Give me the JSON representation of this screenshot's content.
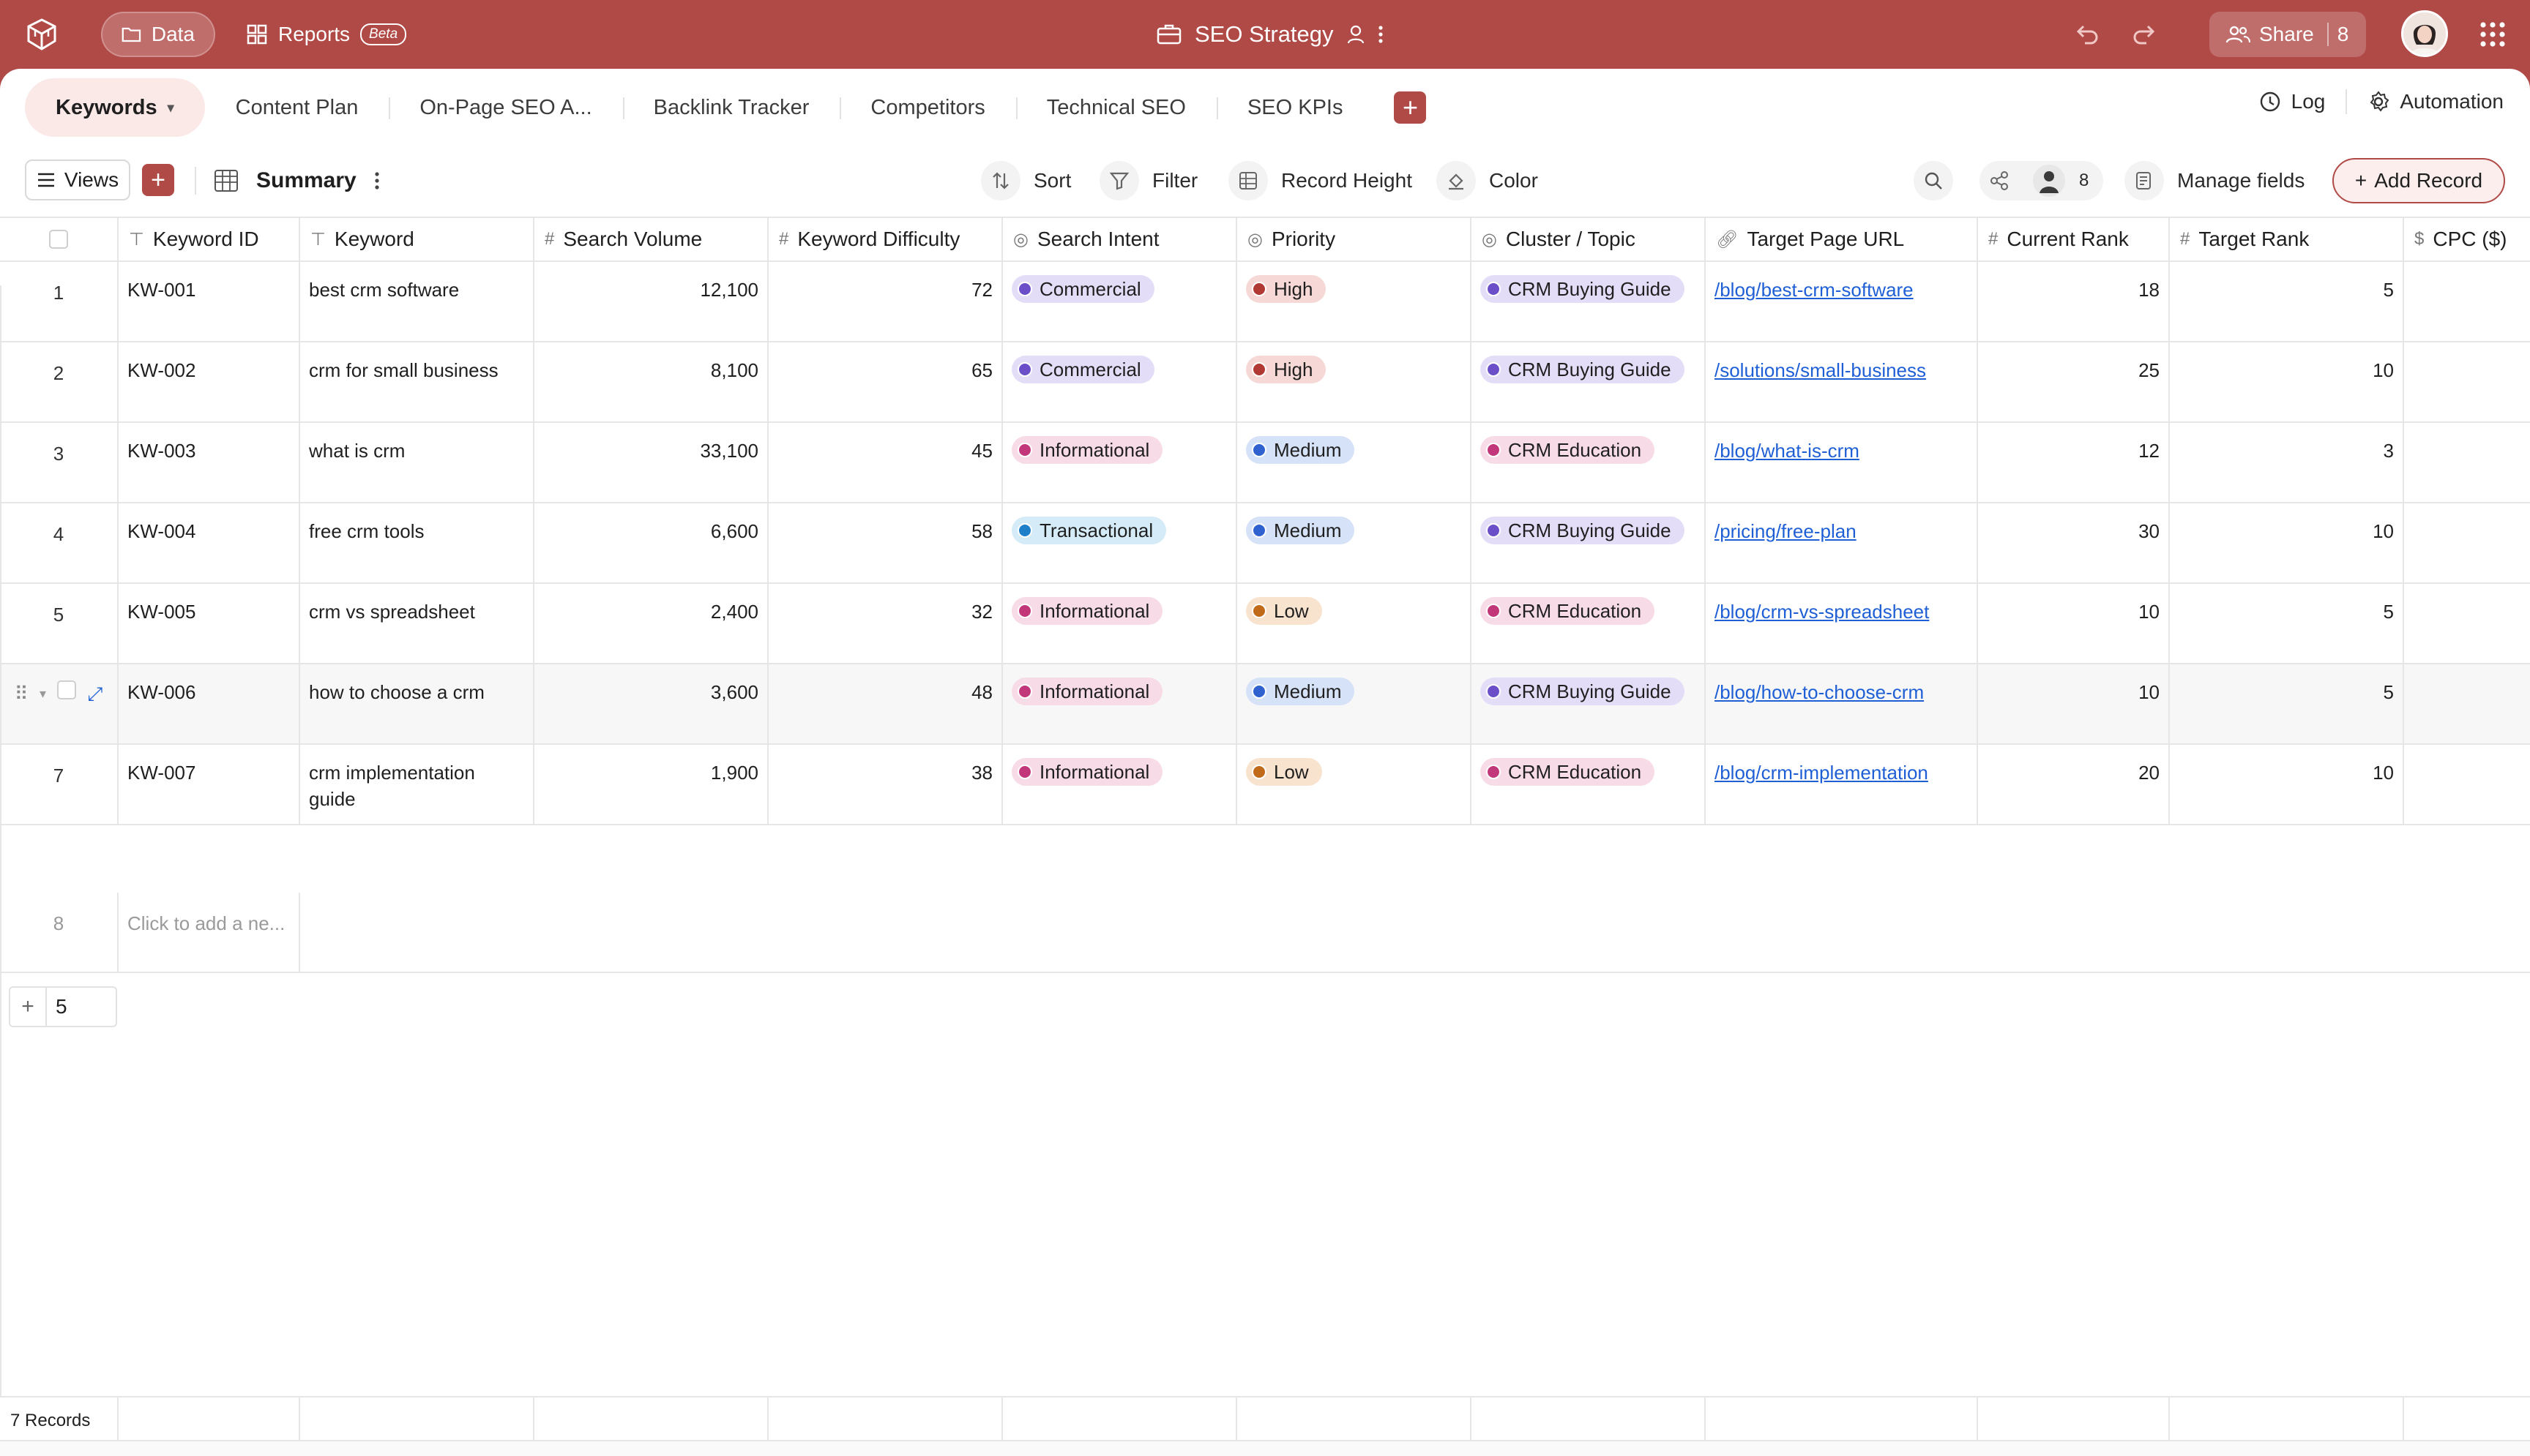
{
  "topbar": {
    "data_label": "Data",
    "reports_label": "Reports",
    "beta_label": "Beta",
    "doc_title": "SEO Strategy",
    "share_label": "Share",
    "share_count": "8"
  },
  "tabs": [
    {
      "label": "Keywords",
      "active": true
    },
    {
      "label": "Content Plan"
    },
    {
      "label": "On-Page SEO A..."
    },
    {
      "label": "Backlink Tracker"
    },
    {
      "label": "Competitors"
    },
    {
      "label": "Technical SEO"
    },
    {
      "label": "SEO KPIs"
    }
  ],
  "tabs_right": {
    "log_label": "Log",
    "automation_label": "Automation"
  },
  "toolbar": {
    "views_label": "Views",
    "view_name": "Summary",
    "sort_label": "Sort",
    "filter_label": "Filter",
    "record_height_label": "Record Height",
    "color_label": "Color",
    "collaborator_count": "8",
    "manage_fields_label": "Manage fields",
    "add_record_label": "Add Record"
  },
  "columns": [
    {
      "label": "Keyword ID",
      "type_icon": "text"
    },
    {
      "label": "Keyword",
      "type_icon": "text"
    },
    {
      "label": "Search Volume",
      "type_icon": "#"
    },
    {
      "label": "Keyword Difficulty",
      "type_icon": "#"
    },
    {
      "label": "Search Intent",
      "type_icon": "select"
    },
    {
      "label": "Priority",
      "type_icon": "select"
    },
    {
      "label": "Cluster / Topic",
      "type_icon": "select"
    },
    {
      "label": "Target Page URL",
      "type_icon": "link"
    },
    {
      "label": "Current Rank",
      "type_icon": "#"
    },
    {
      "label": "Target Rank",
      "type_icon": "#"
    },
    {
      "label": "CPC ($)",
      "type_icon": "$"
    }
  ],
  "rows": [
    {
      "idx": "1",
      "id": "KW-001",
      "keyword": "best crm software",
      "volume": "12,100",
      "difficulty": "72",
      "intent": "Commercial",
      "priority": "High",
      "cluster": "CRM Buying Guide",
      "url": "/blog/best-crm-software",
      "current": "18",
      "target": "5"
    },
    {
      "idx": "2",
      "id": "KW-002",
      "keyword": "crm for small business",
      "volume": "8,100",
      "difficulty": "65",
      "intent": "Commercial",
      "priority": "High",
      "cluster": "CRM Buying Guide",
      "url": "/solutions/small-business",
      "current": "25",
      "target": "10"
    },
    {
      "idx": "3",
      "id": "KW-003",
      "keyword": "what is crm",
      "volume": "33,100",
      "difficulty": "45",
      "intent": "Informational",
      "priority": "Medium",
      "cluster": "CRM Education",
      "url": "/blog/what-is-crm",
      "current": "12",
      "target": "3"
    },
    {
      "idx": "4",
      "id": "KW-004",
      "keyword": "free crm tools",
      "volume": "6,600",
      "difficulty": "58",
      "intent": "Transactional",
      "priority": "Medium",
      "cluster": "CRM Buying Guide",
      "url": "/pricing/free-plan",
      "current": "30",
      "target": "10"
    },
    {
      "idx": "5",
      "id": "KW-005",
      "keyword": "crm vs spreadsheet",
      "volume": "2,400",
      "difficulty": "32",
      "intent": "Informational",
      "priority": "Low",
      "cluster": "CRM Education",
      "url": "/blog/crm-vs-spreadsheet",
      "current": "10",
      "target": "5"
    },
    {
      "idx": "",
      "id": "KW-006",
      "keyword": "how to choose a crm",
      "volume": "3,600",
      "difficulty": "48",
      "intent": "Informational",
      "priority": "Medium",
      "cluster": "CRM Buying Guide",
      "url": "/blog/how-to-choose-crm",
      "current": "10",
      "target": "5",
      "hovered": true
    },
    {
      "idx": "7",
      "id": "KW-007",
      "keyword": "crm implementation guide",
      "volume": "1,900",
      "difficulty": "38",
      "intent": "Informational",
      "priority": "Low",
      "cluster": "CRM Education",
      "url": "/blog/crm-implementation",
      "current": "20",
      "target": "10"
    }
  ],
  "add_row": {
    "idx": "8",
    "placeholder": "Click to add a ne..."
  },
  "footer": {
    "add_count": "5",
    "records_label": "7 Records"
  },
  "colors": {
    "accent": "#b04a47",
    "commercial_bg": "#e4ddf7",
    "commercial_dot": "#6b4fc8",
    "informational_bg": "#f7dbe7",
    "informational_dot": "#c2377a",
    "transactional_bg": "#d5ecf8",
    "transactional_dot": "#1f7fc9",
    "high_bg": "#f6d9d6",
    "high_dot": "#b03a33",
    "medium_bg": "#d6e2f8",
    "medium_dot": "#2f61cf",
    "low_bg": "#f8e3cf",
    "low_dot": "#c06a1a",
    "buying_bg": "#e4ddf7",
    "buying_dot": "#6b4fc8",
    "education_bg": "#f7dbe7",
    "education_dot": "#c2377a"
  }
}
